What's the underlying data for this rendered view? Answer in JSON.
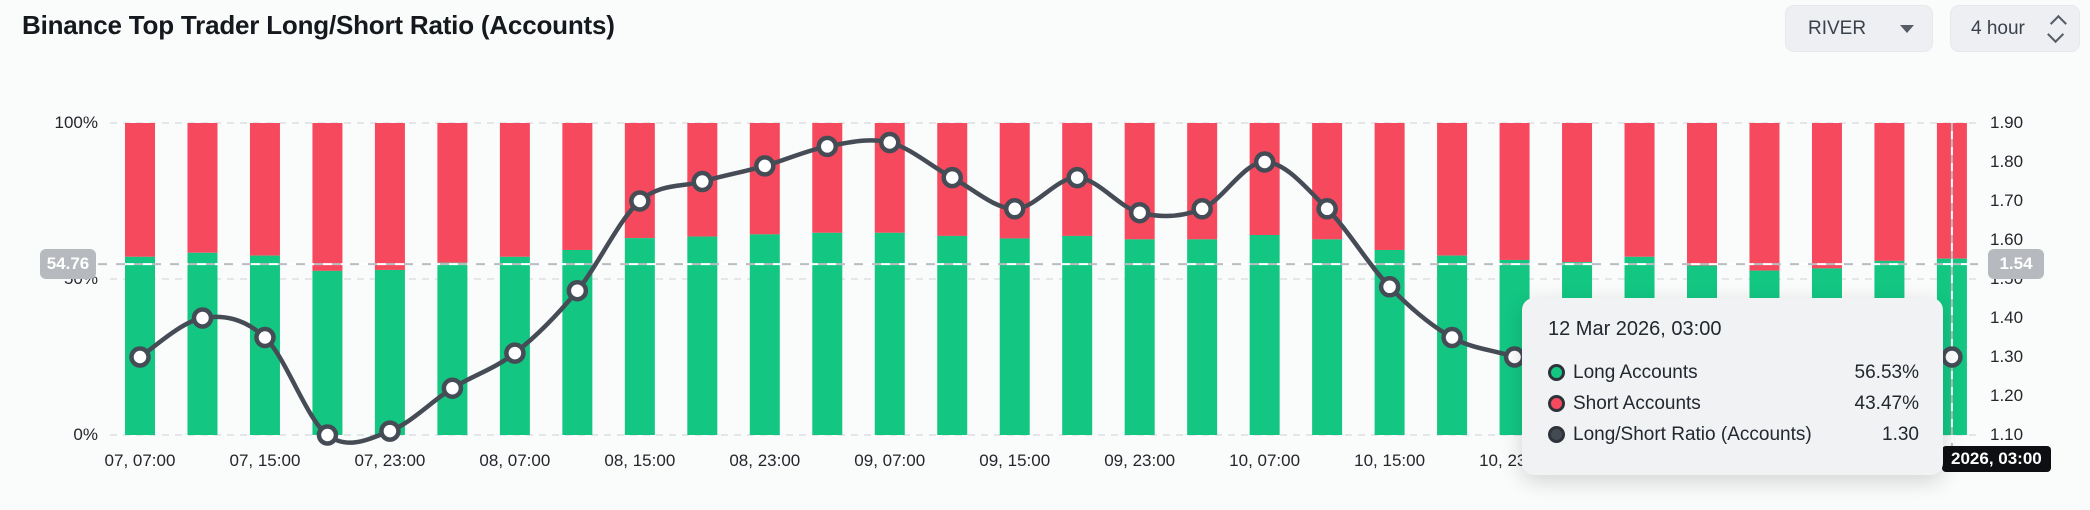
{
  "header": {
    "title": "Binance Top Trader Long/Short Ratio (Accounts)",
    "pair_selector": {
      "value": "RIVER"
    },
    "interval_selector": {
      "value": "4 hour"
    }
  },
  "colors": {
    "long_green": "#13c783",
    "short_red": "#f7495e",
    "ratio_line": "#454c56",
    "grid": "#e4e6e9",
    "badge_gray": "#b6b9be",
    "crosshair_badge_bg": "#0d0f12",
    "background": "#fafbfb"
  },
  "chart_data": {
    "type": "bar",
    "subtype": "stacked-percent-bars-with-ratio-line",
    "title": "Binance Top Trader Long/Short Ratio (Accounts)",
    "interval_hours": 4,
    "times": [
      "07, 07:00",
      "07, 11:00",
      "07, 15:00",
      "07, 19:00",
      "07, 23:00",
      "08, 03:00",
      "08, 07:00",
      "08, 11:00",
      "08, 15:00",
      "08, 19:00",
      "08, 23:00",
      "09, 03:00",
      "09, 07:00",
      "09, 11:00",
      "09, 15:00",
      "09, 19:00",
      "09, 23:00",
      "10, 03:00",
      "10, 07:00",
      "10, 11:00",
      "10, 15:00",
      "10, 19:00",
      "10, 23:00",
      "11, 03:00",
      "11, 07:00",
      "11, 11:00",
      "11, 15:00",
      "11, 19:00",
      "11, 23:00",
      "12, 03:00"
    ],
    "x_labels": [
      "07, 07:00",
      "07, 15:00",
      "07, 23:00",
      "08, 07:00",
      "08, 15:00",
      "08, 23:00",
      "09, 07:00",
      "09, 15:00",
      "09, 23:00",
      "10, 07:00",
      "10, 15:00",
      "10, 23:00"
    ],
    "series": [
      {
        "name": "Long Accounts",
        "unit": "%",
        "color": "#13c783",
        "values": [
          57.1,
          58.4,
          57.5,
          52.6,
          52.9,
          55.2,
          57.1,
          59.3,
          63.1,
          63.6,
          64.3,
          64.8,
          64.8,
          63.8,
          63.0,
          63.8,
          62.7,
          62.7,
          64.1,
          62.7,
          59.3,
          57.5,
          56.1,
          55.4,
          57.1,
          54.3,
          52.7,
          53.4,
          55.8,
          56.53
        ]
      },
      {
        "name": "Short Accounts",
        "unit": "%",
        "color": "#f7495e",
        "values": [
          42.9,
          41.6,
          42.5,
          47.4,
          47.1,
          44.8,
          42.9,
          40.7,
          36.9,
          36.4,
          35.7,
          35.2,
          35.2,
          36.2,
          37.0,
          36.2,
          37.3,
          37.3,
          35.9,
          37.3,
          40.7,
          42.5,
          43.9,
          44.6,
          42.9,
          45.7,
          47.3,
          46.6,
          44.2,
          43.47
        ]
      },
      {
        "name": "Long/Short Ratio (Accounts)",
        "unit": "",
        "color": "#454c56",
        "values": [
          1.3,
          1.4,
          1.35,
          1.1,
          1.11,
          1.22,
          1.31,
          1.47,
          1.7,
          1.75,
          1.79,
          1.84,
          1.85,
          1.76,
          1.68,
          1.76,
          1.67,
          1.68,
          1.8,
          1.68,
          1.48,
          1.35,
          1.3,
          1.24,
          1.33,
          1.19,
          1.11,
          1.15,
          1.26,
          1.3
        ]
      }
    ],
    "left_axis": {
      "ticks": [
        "100%",
        "50%",
        "0%"
      ],
      "min": 0,
      "max": 100
    },
    "right_axis": {
      "ticks": [
        "1.90",
        "1.80",
        "1.70",
        "1.60",
        "1.50",
        "1.40",
        "1.30",
        "1.20",
        "1.10"
      ],
      "min": 1.1,
      "max": 1.9
    },
    "highlight_line": {
      "percent": 54.76,
      "left_label": "54.76",
      "right_label": "1.54"
    },
    "crosshair": {
      "bar_index": 29,
      "time_label": "2026, 03:00"
    },
    "legend_position": "none",
    "grid": "dashed horizontal at 100%, 50%, 0%"
  },
  "tooltip": {
    "title": "12 Mar 2026, 03:00",
    "rows": [
      {
        "label": "Long Accounts",
        "value": "56.53%",
        "color": "#13c783"
      },
      {
        "label": "Short Accounts",
        "value": "43.47%",
        "color": "#f7495e"
      },
      {
        "label": "Long/Short Ratio (Accounts)",
        "value": "1.30",
        "color": "#434a52"
      }
    ]
  }
}
